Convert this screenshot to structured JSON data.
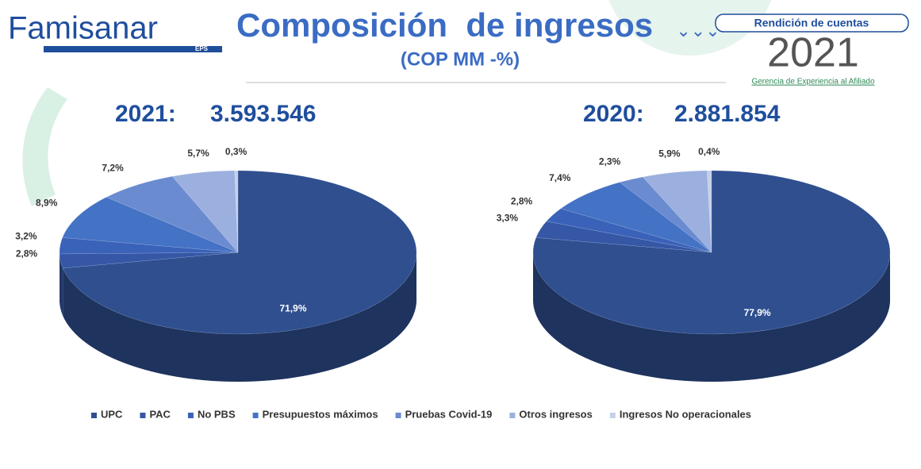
{
  "header": {
    "logo": "Famisanar",
    "logo_sub": "EPS",
    "title": "Composición  de ingresos",
    "subtitle": "(COP MM -%)",
    "badge": "Rendición de cuentas",
    "year": "2021",
    "department": "Gerencia de Experiencia al Afiliado"
  },
  "legend": {
    "categories": [
      "UPC",
      "PAC",
      "No PBS",
      "Presupuestos máximos",
      "Pruebas Covid-19",
      "Otros ingresos",
      "Ingresos No operacionales"
    ],
    "colors": [
      "#2f4f8f",
      "#3557a6",
      "#3a62b8",
      "#4472c4",
      "#6a8bd0",
      "#9bb0de",
      "#c5d0ea"
    ]
  },
  "chart_data": [
    {
      "type": "pie",
      "title": "2021:",
      "subtitle": "3.593.546",
      "values": [
        71.9,
        2.8,
        3.2,
        8.9,
        7.2,
        5.7,
        0.3
      ],
      "value_labels": [
        "71,9%",
        "2,8%",
        "3,2%",
        "8,9%",
        "7,2%",
        "5,7%",
        "0,3%"
      ]
    },
    {
      "type": "pie",
      "title": "2020:",
      "subtitle": "2.881.854",
      "values": [
        77.9,
        3.3,
        2.8,
        7.4,
        2.3,
        5.9,
        0.4
      ],
      "value_labels": [
        "77,9%",
        "3,3%",
        "2,8%",
        "7,4%",
        "2,3%",
        "5,9%",
        "0,4%"
      ]
    }
  ]
}
